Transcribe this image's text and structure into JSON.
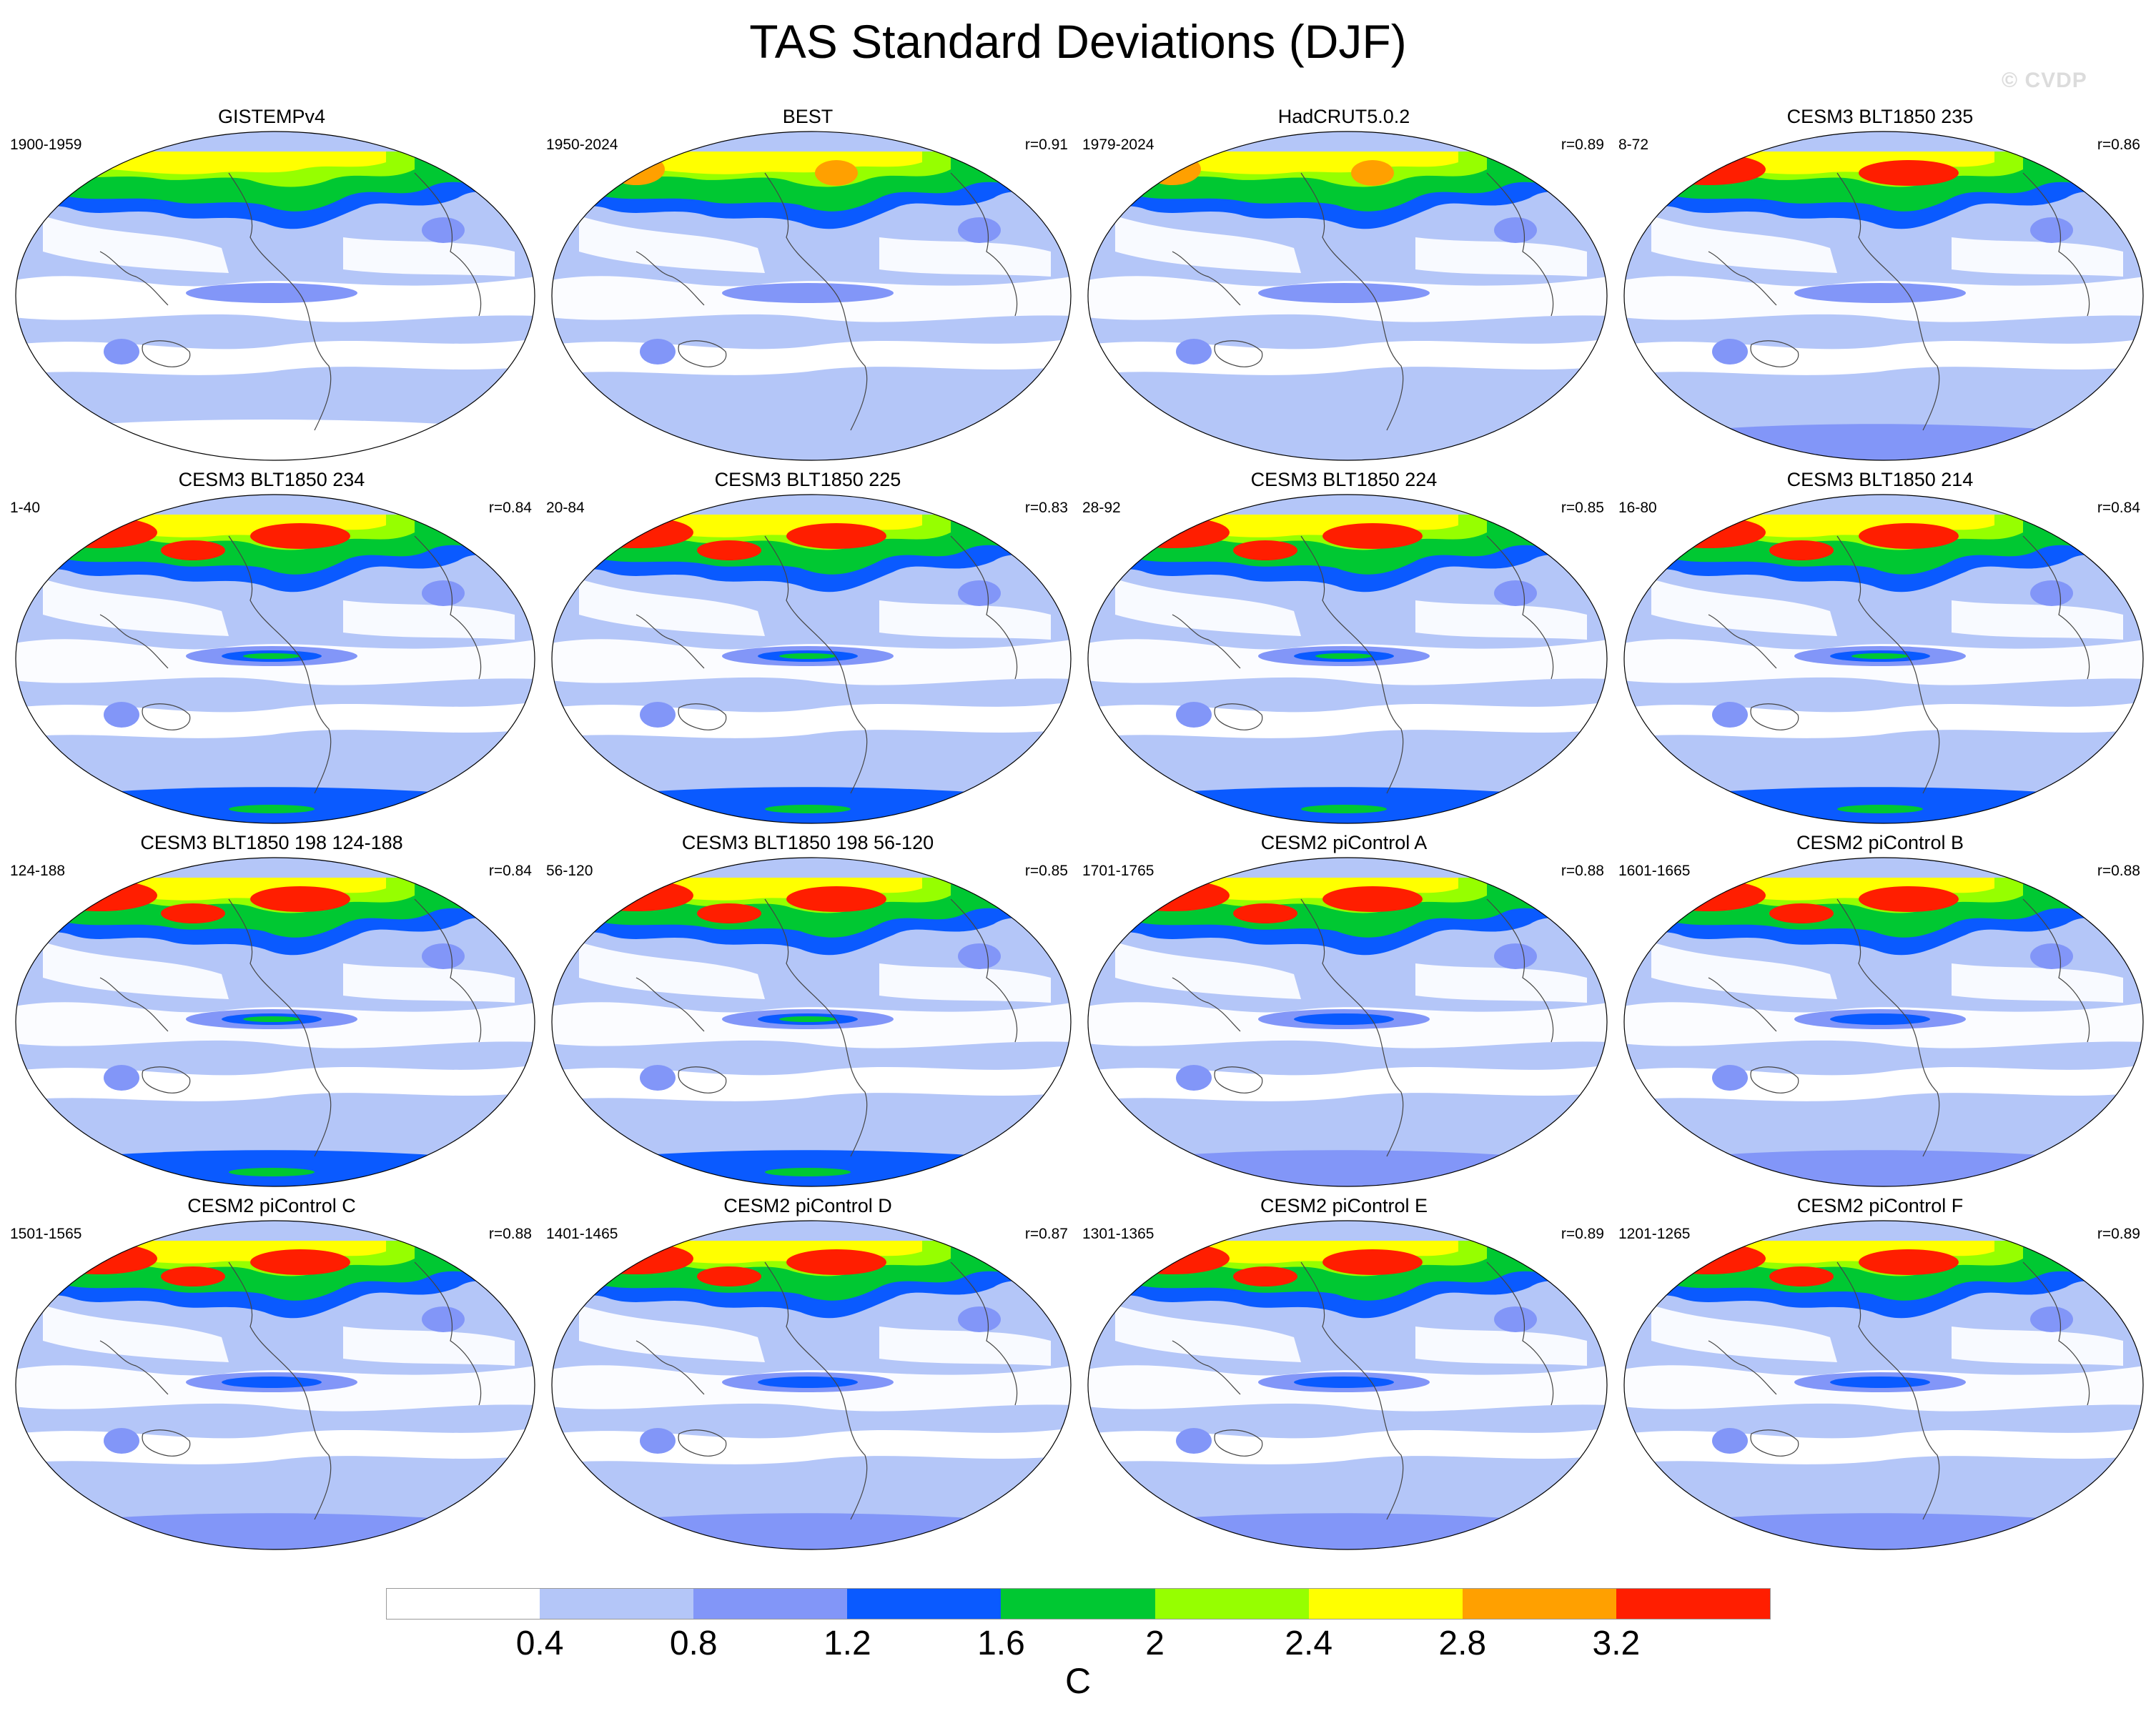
{
  "title": "TAS Standard Deviations (DJF)",
  "watermark": "© CVDP",
  "colorbar": {
    "unit": "C",
    "tick_labels": [
      "0.4",
      "0.8",
      "1.2",
      "1.6",
      "2",
      "2.4",
      "2.8",
      "3.2"
    ],
    "levels": [
      0.4,
      0.8,
      1.2,
      1.6,
      2.0,
      2.4,
      2.8,
      3.2
    ],
    "colors": [
      "#ffffff",
      "#b4c6f8",
      "#8296f8",
      "#0a5aff",
      "#00c832",
      "#96ff00",
      "#ffff00",
      "#ffa000",
      "#ff1e00"
    ]
  },
  "panels": [
    {
      "title": "GISTEMPv4",
      "years": "1900-1959",
      "r": "",
      "variant": 0
    },
    {
      "title": "BEST",
      "years": "1950-2024",
      "r": "r=0.91",
      "variant": 1
    },
    {
      "title": "HadCRUT5.0.2",
      "years": "1979-2024",
      "r": "r=0.89",
      "variant": 1
    },
    {
      "title": "CESM3 BLT1850 235",
      "years": "8-72",
      "r": "r=0.86",
      "variant": 2
    },
    {
      "title": "CESM3 BLT1850 234",
      "years": "1-40",
      "r": "r=0.84",
      "variant": 3
    },
    {
      "title": "CESM3 BLT1850 225",
      "years": "20-84",
      "r": "r=0.83",
      "variant": 3
    },
    {
      "title": "CESM3 BLT1850 224",
      "years": "28-92",
      "r": "r=0.85",
      "variant": 3
    },
    {
      "title": "CESM3 BLT1850 214",
      "years": "16-80",
      "r": "r=0.84",
      "variant": 3
    },
    {
      "title": "CESM3 BLT1850 198 124-188",
      "years": "124-188",
      "r": "r=0.84",
      "variant": 3
    },
    {
      "title": "CESM3 BLT1850 198 56-120",
      "years": "56-120",
      "r": "r=0.85",
      "variant": 3
    },
    {
      "title": "CESM2 piControl A",
      "years": "1701-1765",
      "r": "r=0.88",
      "variant": 4
    },
    {
      "title": "CESM2 piControl B",
      "years": "1601-1665",
      "r": "r=0.88",
      "variant": 4
    },
    {
      "title": "CESM2 piControl C",
      "years": "1501-1565",
      "r": "r=0.88",
      "variant": 4
    },
    {
      "title": "CESM2 piControl D",
      "years": "1401-1465",
      "r": "r=0.87",
      "variant": 4
    },
    {
      "title": "CESM2 piControl E",
      "years": "1301-1365",
      "r": "r=0.89",
      "variant": 4
    },
    {
      "title": "CESM2 piControl F",
      "years": "1201-1265",
      "r": "r=0.89",
      "variant": 4
    }
  ]
}
